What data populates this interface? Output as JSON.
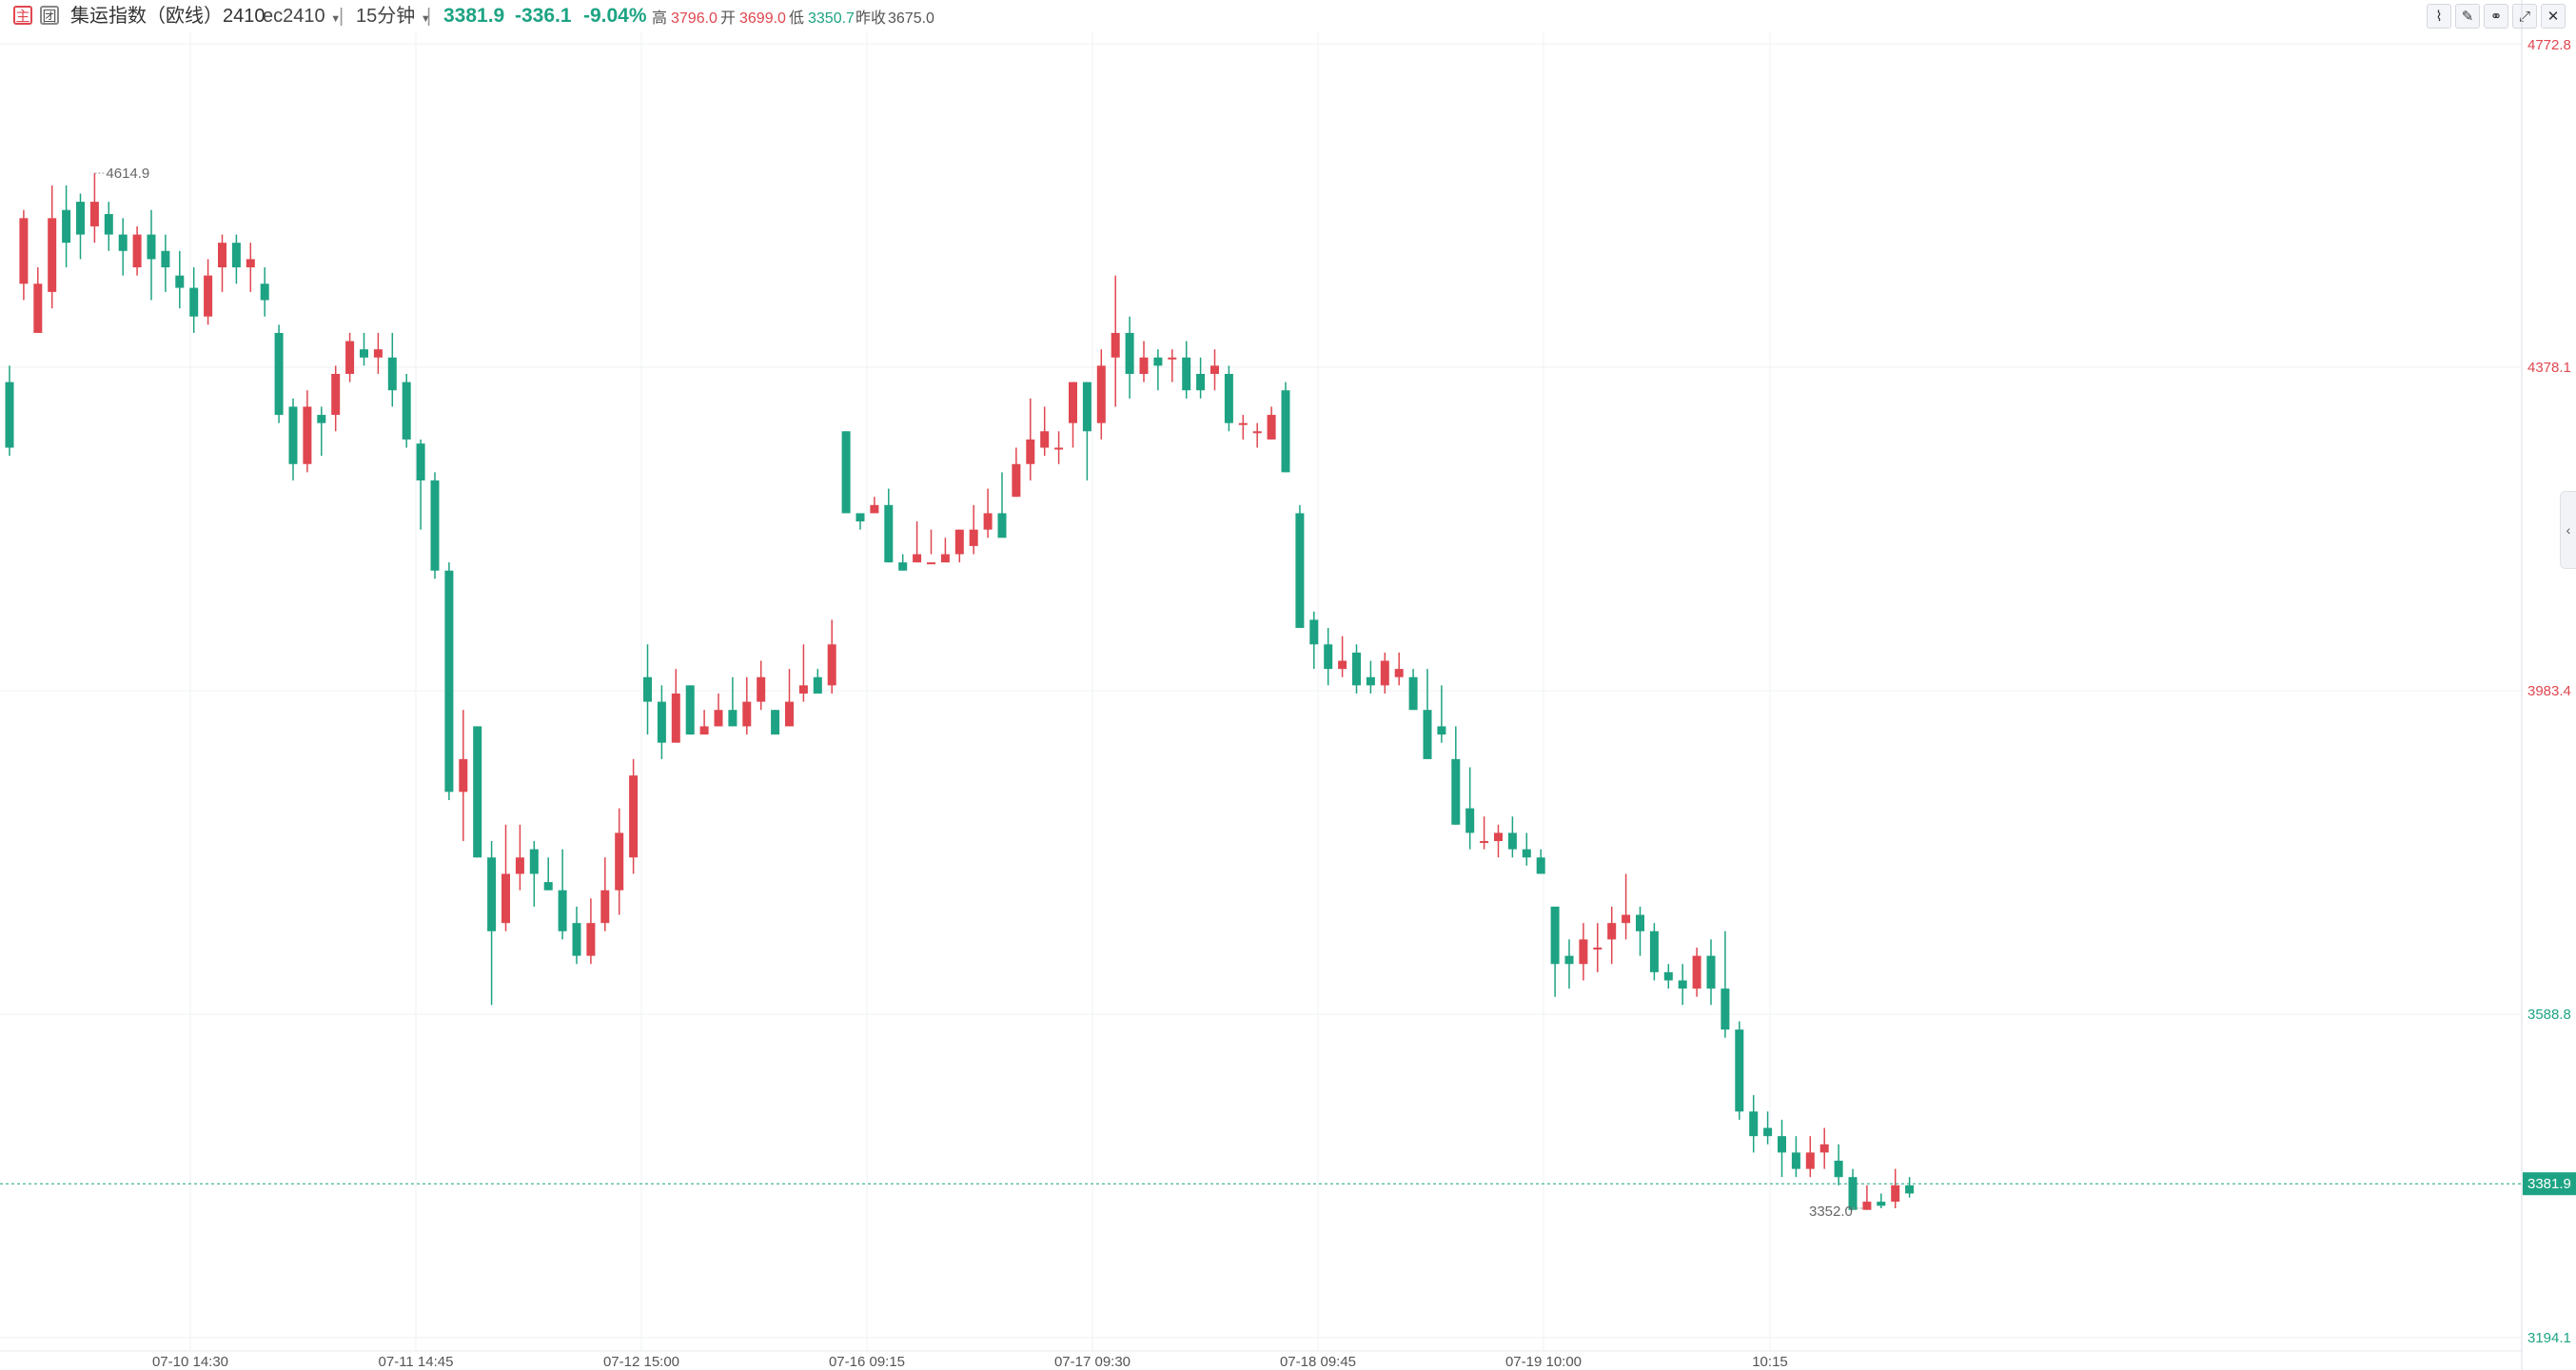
{
  "header": {
    "badge_main": "主",
    "badge_group": "团",
    "title": "集运指数（欧线）2410",
    "contract": "ec2410",
    "period": "15分钟",
    "last": "3381.9",
    "change": "-336.1",
    "change_pct": "-9.04%",
    "high_label": "高",
    "high": "3796.0",
    "open_label": "开",
    "open": "3699.0",
    "low_label": "低",
    "low": "3350.7",
    "prev_close_label": "昨收",
    "prev_close": "3675.0"
  },
  "toolbar": {
    "icons": [
      "line-chart-icon",
      "draw-pen-icon",
      "compare-icon",
      "fullscreen-icon",
      "close-icon"
    ]
  },
  "colors": {
    "up": "#e0464f",
    "down": "#1da383",
    "grid": "#eef0f3",
    "last_price": "#1da383"
  },
  "chart_data": {
    "type": "candlestick",
    "title": "集运指数（欧线）2410 15分钟",
    "ylim": [
      3194.1,
      4772.8
    ],
    "y_tick_labels": [
      "4772.8",
      "4378.1",
      "3983.4",
      "3588.8",
      "3194.1"
    ],
    "x_tick_labels": [
      "07-10 14:30",
      "07-11 14:45",
      "07-12 15:00",
      "07-16 09:15",
      "07-17 09:30",
      "07-18 09:45",
      "07-19 10:00",
      "10:15"
    ],
    "last_price_label": "3381.9",
    "annotations": [
      {
        "label": "4614.9",
        "value": 4614.9
      },
      {
        "label": "3352.0",
        "value": 3352.0
      }
    ],
    "candles": [
      [
        4360,
        4280,
        4380,
        4270
      ],
      [
        4480,
        4560,
        4570,
        4460
      ],
      [
        4420,
        4480,
        4500,
        4420
      ],
      [
        4470,
        4560,
        4600,
        4450
      ],
      [
        4570,
        4530,
        4600,
        4500
      ],
      [
        4580,
        4540,
        4590,
        4510
      ],
      [
        4550,
        4580,
        4615,
        4530
      ],
      [
        4565,
        4540,
        4580,
        4520
      ],
      [
        4540,
        4520,
        4560,
        4490
      ],
      [
        4500,
        4540,
        4550,
        4490
      ],
      [
        4540,
        4510,
        4570,
        4460
      ],
      [
        4520,
        4500,
        4540,
        4470
      ],
      [
        4490,
        4475,
        4520,
        4450
      ],
      [
        4475,
        4440,
        4500,
        4420
      ],
      [
        4440,
        4490,
        4510,
        4430
      ],
      [
        4500,
        4530,
        4540,
        4470
      ],
      [
        4530,
        4500,
        4540,
        4480
      ],
      [
        4500,
        4510,
        4530,
        4470
      ],
      [
        4480,
        4460,
        4500,
        4440
      ],
      [
        4420,
        4320,
        4430,
        4310
      ],
      [
        4330,
        4260,
        4340,
        4240
      ],
      [
        4260,
        4330,
        4350,
        4250
      ],
      [
        4320,
        4310,
        4330,
        4270
      ],
      [
        4320,
        4370,
        4380,
        4300
      ],
      [
        4370,
        4410,
        4420,
        4360
      ],
      [
        4400,
        4390,
        4420,
        4380
      ],
      [
        4390,
        4400,
        4420,
        4370
      ],
      [
        4390,
        4350,
        4420,
        4330
      ],
      [
        4360,
        4290,
        4370,
        4280
      ],
      [
        4285,
        4240,
        4290,
        4180
      ],
      [
        4240,
        4130,
        4250,
        4120
      ],
      [
        4130,
        3860,
        4140,
        3850
      ],
      [
        3860,
        3900,
        3960,
        3800
      ],
      [
        3940,
        3780,
        3940,
        3780
      ],
      [
        3780,
        3690,
        3800,
        3600
      ],
      [
        3700,
        3760,
        3820,
        3690
      ],
      [
        3760,
        3780,
        3820,
        3740
      ],
      [
        3790,
        3760,
        3800,
        3720
      ],
      [
        3750,
        3740,
        3780,
        3740
      ],
      [
        3740,
        3690,
        3790,
        3680
      ],
      [
        3700,
        3660,
        3720,
        3650
      ],
      [
        3660,
        3700,
        3730,
        3650
      ],
      [
        3700,
        3740,
        3780,
        3690
      ],
      [
        3740,
        3810,
        3840,
        3710
      ],
      [
        3780,
        3880,
        3900,
        3760
      ],
      [
        4000,
        3970,
        4040,
        3930
      ],
      [
        3970,
        3920,
        3990,
        3900
      ],
      [
        3920,
        3980,
        4010,
        3930
      ],
      [
        3990,
        3930,
        3990,
        3930
      ],
      [
        3930,
        3940,
        3960,
        3930
      ],
      [
        3940,
        3960,
        3980,
        3940
      ],
      [
        3960,
        3940,
        4000,
        3940
      ],
      [
        3940,
        3970,
        4000,
        3930
      ],
      [
        3970,
        4000,
        4020,
        3960
      ],
      [
        3960,
        3930,
        3960,
        3930
      ],
      [
        3940,
        3970,
        4010,
        3940
      ],
      [
        3980,
        3990,
        4040,
        3970
      ],
      [
        4000,
        3980,
        4010,
        3980
      ],
      [
        3990,
        4040,
        4070,
        3980
      ],
      [
        4300,
        4200,
        4300,
        4200
      ],
      [
        4200,
        4190,
        4200,
        4180
      ],
      [
        4200,
        4210,
        4220,
        4200
      ],
      [
        4210,
        4140,
        4230,
        4140
      ],
      [
        4140,
        4130,
        4150,
        4130
      ],
      [
        4140,
        4150,
        4190,
        4140
      ],
      [
        4140,
        4140,
        4180,
        4150
      ],
      [
        4140,
        4150,
        4170,
        4140
      ],
      [
        4150,
        4180,
        4180,
        4140
      ],
      [
        4160,
        4180,
        4210,
        4150
      ],
      [
        4180,
        4200,
        4230,
        4170
      ],
      [
        4200,
        4170,
        4250,
        4180
      ],
      [
        4220,
        4260,
        4280,
        4220
      ],
      [
        4260,
        4290,
        4340,
        4240
      ],
      [
        4280,
        4300,
        4330,
        4270
      ],
      [
        4280,
        4280,
        4300,
        4260
      ],
      [
        4310,
        4360,
        4360,
        4280
      ],
      [
        4360,
        4300,
        4360,
        4240
      ],
      [
        4310,
        4380,
        4400,
        4290
      ],
      [
        4390,
        4420,
        4490,
        4330
      ],
      [
        4420,
        4370,
        4440,
        4340
      ],
      [
        4370,
        4390,
        4410,
        4360
      ],
      [
        4390,
        4380,
        4400,
        4350
      ],
      [
        4390,
        4390,
        4400,
        4360
      ],
      [
        4390,
        4350,
        4410,
        4340
      ],
      [
        4370,
        4350,
        4390,
        4340
      ],
      [
        4370,
        4380,
        4400,
        4350
      ],
      [
        4370,
        4310,
        4380,
        4300
      ],
      [
        4310,
        4310,
        4320,
        4290
      ],
      [
        4300,
        4300,
        4310,
        4280
      ],
      [
        4290,
        4320,
        4330,
        4290
      ],
      [
        4350,
        4250,
        4360,
        4250
      ],
      [
        4200,
        4060,
        4210,
        4060
      ],
      [
        4070,
        4040,
        4080,
        4010
      ],
      [
        4040,
        4010,
        4060,
        3990
      ],
      [
        4010,
        4020,
        4050,
        4000
      ],
      [
        4030,
        3990,
        4040,
        3980
      ],
      [
        4000,
        3990,
        4020,
        3980
      ],
      [
        3990,
        4020,
        4030,
        3980
      ],
      [
        4000,
        4010,
        4030,
        3990
      ],
      [
        4000,
        3960,
        4010,
        3960
      ],
      [
        3960,
        3900,
        4010,
        3900
      ],
      [
        3940,
        3930,
        3990,
        3920
      ],
      [
        3900,
        3820,
        3940,
        3820
      ],
      [
        3840,
        3810,
        3890,
        3790
      ],
      [
        3800,
        3800,
        3830,
        3790
      ],
      [
        3800,
        3810,
        3820,
        3780
      ],
      [
        3810,
        3790,
        3830,
        3780
      ],
      [
        3790,
        3780,
        3810,
        3770
      ],
      [
        3780,
        3760,
        3790,
        3760
      ],
      [
        3720,
        3650,
        3720,
        3610
      ],
      [
        3660,
        3650,
        3680,
        3620
      ],
      [
        3650,
        3680,
        3700,
        3630
      ],
      [
        3670,
        3670,
        3700,
        3640
      ],
      [
        3680,
        3700,
        3720,
        3650
      ],
      [
        3700,
        3710,
        3760,
        3680
      ],
      [
        3710,
        3690,
        3720,
        3660
      ],
      [
        3690,
        3640,
        3700,
        3630
      ],
      [
        3640,
        3630,
        3650,
        3620
      ],
      [
        3630,
        3620,
        3650,
        3600
      ],
      [
        3620,
        3660,
        3670,
        3610
      ],
      [
        3660,
        3620,
        3680,
        3600
      ],
      [
        3620,
        3570,
        3690,
        3560
      ],
      [
        3570,
        3470,
        3580,
        3460
      ],
      [
        3470,
        3440,
        3490,
        3420
      ],
      [
        3450,
        3440,
        3470,
        3430
      ],
      [
        3440,
        3420,
        3460,
        3390
      ],
      [
        3420,
        3400,
        3440,
        3390
      ],
      [
        3400,
        3420,
        3440,
        3390
      ],
      [
        3420,
        3430,
        3450,
        3400
      ],
      [
        3410,
        3390,
        3430,
        3380
      ],
      [
        3390,
        3350,
        3400,
        3350
      ],
      [
        3350,
        3360,
        3380,
        3350
      ],
      [
        3360,
        3355,
        3370,
        3352
      ],
      [
        3360,
        3380,
        3400,
        3352
      ],
      [
        3380,
        3370,
        3390,
        3365
      ]
    ]
  }
}
